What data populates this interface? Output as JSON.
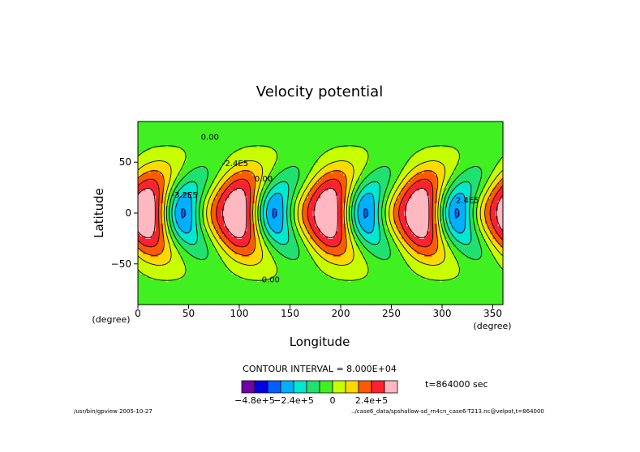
{
  "chart_data": {
    "type": "heatmap",
    "title": "Velocity potential",
    "xlabel": "Longitude",
    "ylabel": "Latitude",
    "x_unit": "(degree)",
    "y_unit": "(degree)",
    "xlim": [
      0,
      360
    ],
    "ylim": [
      -90,
      90
    ],
    "xticks": [
      0,
      50,
      100,
      150,
      200,
      250,
      300,
      350
    ],
    "yticks": [
      -50,
      0,
      50
    ],
    "grid": false,
    "zonal_wavenumber": 4,
    "field_range": [
      -560000.0,
      400000.0
    ],
    "contour_interval_label": "CONTOUR INTERVAL = 8.000E+04",
    "contour_interval": 80000,
    "contour_labels": [
      "0.00",
      "0.00",
      "-3.2E5",
      "-2.4E5",
      "2.4E5",
      "0.00"
    ],
    "colorbar": {
      "levels": [
        -560000.0,
        -480000.0,
        -400000.0,
        -320000.0,
        -240000.0,
        -160000.0,
        -80000.0,
        0,
        80000.0,
        160000.0,
        240000.0,
        320000.0,
        400000.0
      ],
      "tick_labels": [
        "-4.8e+5",
        "-2.4e+5",
        "0",
        "2.4e+5"
      ],
      "colors": [
        "#7000a8",
        "#0000e0",
        "#0060ff",
        "#00b0ff",
        "#00e8d0",
        "#20e070",
        "#40f020",
        "#c8ff00",
        "#ffd800",
        "#ff5a00",
        "#ff2030",
        "#ffb8c0"
      ]
    },
    "time_label": "t=864000 sec"
  },
  "footer": {
    "left": "/usr/bin/gpview  2005-10-27",
    "right": "../case6_data/spshallow-sd_rn4cn_case6-T213.nc@velpot,t=864000"
  }
}
